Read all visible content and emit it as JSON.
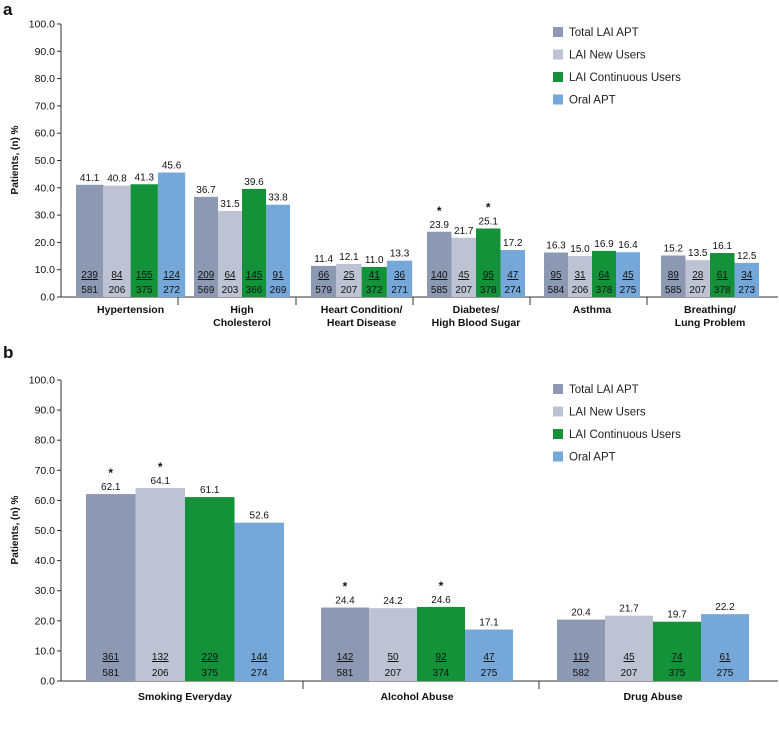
{
  "panels": [
    {
      "label": "a",
      "type": "bar",
      "ylabel": "Patients, (n) %",
      "ylim": [
        0,
        100
      ],
      "yticks": [
        "0.0",
        "10.0",
        "20.0",
        "30.0",
        "40.0",
        "50.0",
        "60.0",
        "70.0",
        "80.0",
        "90.0",
        "100.0"
      ],
      "categories": [
        [
          "Hypertension"
        ],
        [
          "High",
          "Cholesterol"
        ],
        [
          "Heart Condition/",
          "Heart Disease"
        ],
        [
          "Diabetes/",
          "High Blood Sugar"
        ],
        [
          "Asthma"
        ],
        [
          "Breathing/",
          "Lung Problem"
        ]
      ],
      "series": [
        {
          "name": "Total LAI APT",
          "color": "#8d99b3",
          "values": [
            41.1,
            36.7,
            11.4,
            23.9,
            16.3,
            15.2
          ],
          "labels": [
            "41.1",
            "36.7",
            "11.4",
            "23.9",
            "16.3",
            "15.2"
          ],
          "num": [
            "239",
            "209",
            "66",
            "140",
            "95",
            "89"
          ],
          "den": [
            "581",
            "569",
            "579",
            "585",
            "584",
            "585"
          ],
          "star": [
            false,
            false,
            false,
            true,
            false,
            false
          ]
        },
        {
          "name": "LAI New Users",
          "color": "#bdc3d3",
          "values": [
            40.8,
            31.5,
            12.1,
            21.7,
            15.0,
            13.5
          ],
          "labels": [
            "40.8",
            "31.5",
            "12.1",
            "21.7",
            "15.0",
            "13.5"
          ],
          "num": [
            "84",
            "64",
            "25",
            "45",
            "31",
            "28"
          ],
          "den": [
            "206",
            "203",
            "207",
            "207",
            "206",
            "207"
          ],
          "star": [
            false,
            false,
            false,
            false,
            false,
            false
          ]
        },
        {
          "name": "LAI Continuous Users",
          "color": "#139239",
          "values": [
            41.3,
            39.6,
            11.0,
            25.1,
            16.9,
            16.1
          ],
          "labels": [
            "41.3",
            "39.6",
            "11.0",
            "25.1",
            "16.9",
            "16.1"
          ],
          "num": [
            "155",
            "145",
            "41",
            "95",
            "64",
            "61"
          ],
          "den": [
            "375",
            "366",
            "372",
            "378",
            "378",
            "378"
          ],
          "star": [
            false,
            false,
            false,
            true,
            false,
            false
          ]
        },
        {
          "name": "Oral APT",
          "color": "#75a7d8",
          "values": [
            45.6,
            33.8,
            13.3,
            17.2,
            16.4,
            12.5
          ],
          "labels": [
            "45.6",
            "33.8",
            "13.3",
            "17.2",
            "16.4",
            "12.5"
          ],
          "num": [
            "124",
            "91",
            "36",
            "47",
            "45",
            "34"
          ],
          "den": [
            "272",
            "269",
            "271",
            "274",
            "275",
            "273"
          ],
          "star": [
            false,
            false,
            false,
            false,
            false,
            false
          ]
        }
      ]
    },
    {
      "label": "b",
      "type": "bar",
      "ylabel": "Patients, (n) %",
      "ylim": [
        0,
        100
      ],
      "yticks": [
        "0.0",
        "10.0",
        "20.0",
        "30.0",
        "40.0",
        "50.0",
        "60.0",
        "70.0",
        "80.0",
        "90.0",
        "100.0"
      ],
      "categories": [
        [
          "Smoking Everyday"
        ],
        [
          "Alcohol Abuse"
        ],
        [
          "Drug Abuse"
        ]
      ],
      "series": [
        {
          "name": "Total LAI APT",
          "color": "#8d99b3",
          "values": [
            62.1,
            24.4,
            20.4
          ],
          "labels": [
            "62.1",
            "24.4",
            "20.4"
          ],
          "num": [
            "361",
            "142",
            "119"
          ],
          "den": [
            "581",
            "581",
            "582"
          ],
          "star": [
            true,
            true,
            false
          ]
        },
        {
          "name": "LAI New Users",
          "color": "#bdc3d3",
          "values": [
            64.1,
            24.2,
            21.7
          ],
          "labels": [
            "64.1",
            "24.2",
            "21.7"
          ],
          "num": [
            "132",
            "50",
            "45"
          ],
          "den": [
            "206",
            "207",
            "207"
          ],
          "star": [
            true,
            false,
            false
          ]
        },
        {
          "name": "LAI Continuous Users",
          "color": "#139239",
          "values": [
            61.1,
            24.6,
            19.7
          ],
          "labels": [
            "61.1",
            "24.6",
            "19.7"
          ],
          "num": [
            "229",
            "92",
            "74"
          ],
          "den": [
            "375",
            "374",
            "375"
          ],
          "star": [
            false,
            true,
            false
          ]
        },
        {
          "name": "Oral APT",
          "color": "#75a7d8",
          "values": [
            52.6,
            17.1,
            22.2
          ],
          "labels": [
            "52.6",
            "17.1",
            "22.2"
          ],
          "num": [
            "144",
            "47",
            "61"
          ],
          "den": [
            "274",
            "275",
            "275"
          ],
          "star": [
            false,
            false,
            false
          ]
        }
      ]
    }
  ],
  "chart_data": [
    {
      "type": "bar",
      "title": "a",
      "xlabel": "",
      "ylabel": "Patients, (n) %",
      "ylim": [
        0,
        100
      ],
      "categories": [
        "Hypertension",
        "High Cholesterol",
        "Heart Condition/ Heart Disease",
        "Diabetes/ High Blood Sugar",
        "Asthma",
        "Breathing/ Lung Problem"
      ],
      "series": [
        {
          "name": "Total LAI APT",
          "values": [
            41.1,
            36.7,
            11.4,
            23.9,
            16.3,
            15.2
          ]
        },
        {
          "name": "LAI New Users",
          "values": [
            40.8,
            31.5,
            12.1,
            21.7,
            15.0,
            13.5
          ]
        },
        {
          "name": "LAI Continuous Users",
          "values": [
            41.3,
            39.6,
            11.0,
            25.1,
            16.9,
            16.1
          ]
        },
        {
          "name": "Oral APT",
          "values": [
            45.6,
            33.8,
            13.3,
            17.2,
            16.4,
            12.5
          ]
        }
      ],
      "legend": "top-right",
      "annotations": "* significance markers; n/N counts shown at bar base"
    },
    {
      "type": "bar",
      "title": "b",
      "xlabel": "",
      "ylabel": "Patients, (n) %",
      "ylim": [
        0,
        100
      ],
      "categories": [
        "Smoking Everyday",
        "Alcohol Abuse",
        "Drug Abuse"
      ],
      "series": [
        {
          "name": "Total LAI APT",
          "values": [
            62.1,
            24.4,
            20.4
          ]
        },
        {
          "name": "LAI New Users",
          "values": [
            64.1,
            24.2,
            21.7
          ]
        },
        {
          "name": "LAI Continuous Users",
          "values": [
            61.1,
            24.6,
            19.7
          ]
        },
        {
          "name": "Oral APT",
          "values": [
            52.6,
            17.1,
            22.2
          ]
        }
      ],
      "legend": "top-right",
      "annotations": "* significance markers; n/N counts shown at bar base"
    }
  ]
}
